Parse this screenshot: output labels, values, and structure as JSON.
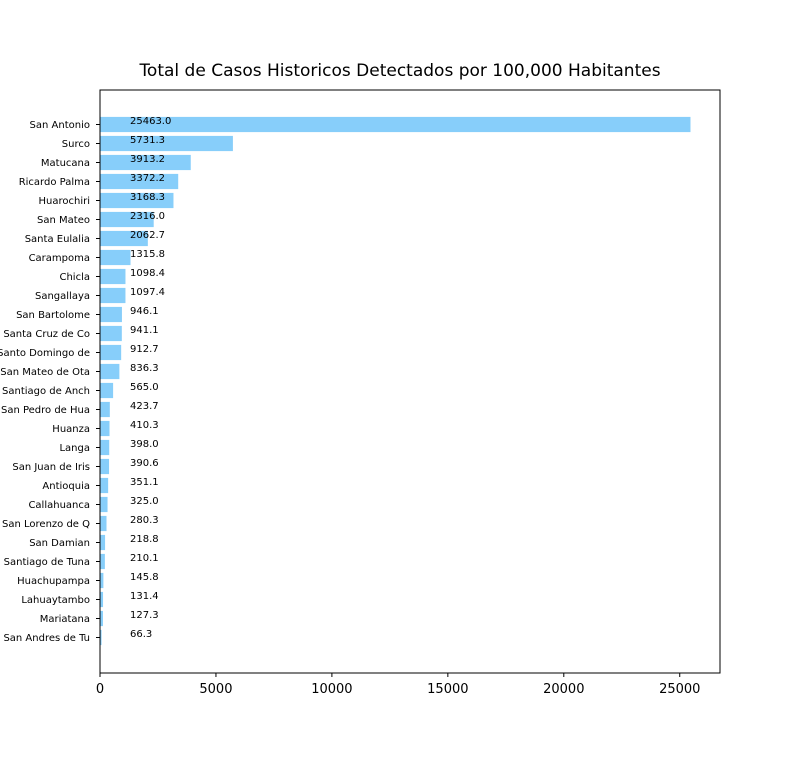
{
  "chart_data": {
    "type": "bar",
    "orientation": "horizontal",
    "title": "Total de Casos Historicos Detectados por 100,000 Habitantes",
    "xlabel": "",
    "ylabel": "",
    "xlim": [
      0,
      26736
    ],
    "x_ticks": [
      "0",
      "5000",
      "10000",
      "15000",
      "20000",
      "25000"
    ],
    "grid": false,
    "legend": "none",
    "bar_color": "#87CEFA",
    "categories": [
      "San Antonio",
      "Surco",
      "Matucana",
      "Ricardo Palma",
      "Huarochiri",
      "San Mateo",
      "Santa Eulalia",
      "Carampoma",
      "Chicla",
      "Sangallaya",
      "San Bartolome",
      "Santa Cruz de Co",
      "Santo Domingo de",
      "San Mateo de Ota",
      "Santiago de Anch",
      "San Pedro de Hua",
      "Huanza",
      "Langa",
      "San Juan de Iris",
      "Antioquia",
      "Callahuanca",
      "San Lorenzo de Q",
      "San Damian",
      "Santiago de Tuna",
      "Huachupampa",
      "Lahuaytambo",
      "Mariatana",
      "San Andres de Tu"
    ],
    "values": [
      25463.0,
      5731.3,
      3913.2,
      3372.2,
      3168.3,
      2316.0,
      2062.7,
      1315.8,
      1098.4,
      1097.4,
      946.1,
      941.1,
      912.7,
      836.3,
      565.0,
      423.7,
      410.3,
      398.0,
      390.6,
      351.1,
      325.0,
      280.3,
      218.8,
      210.1,
      145.8,
      131.4,
      127.3,
      66.3
    ],
    "data_labels": [
      "25463.0",
      "5731.3",
      "3913.2",
      "3372.2",
      "3168.3",
      "2316.0",
      "2062.7",
      "1315.8",
      "1098.4",
      "1097.4",
      "946.1",
      "941.1",
      "912.7",
      "836.3",
      "565.0",
      "423.7",
      "410.3",
      "398.0",
      "390.6",
      "351.1",
      "325.0",
      "280.3",
      "218.8",
      "210.1",
      "145.8",
      "131.4",
      "127.3",
      "66.3"
    ]
  }
}
